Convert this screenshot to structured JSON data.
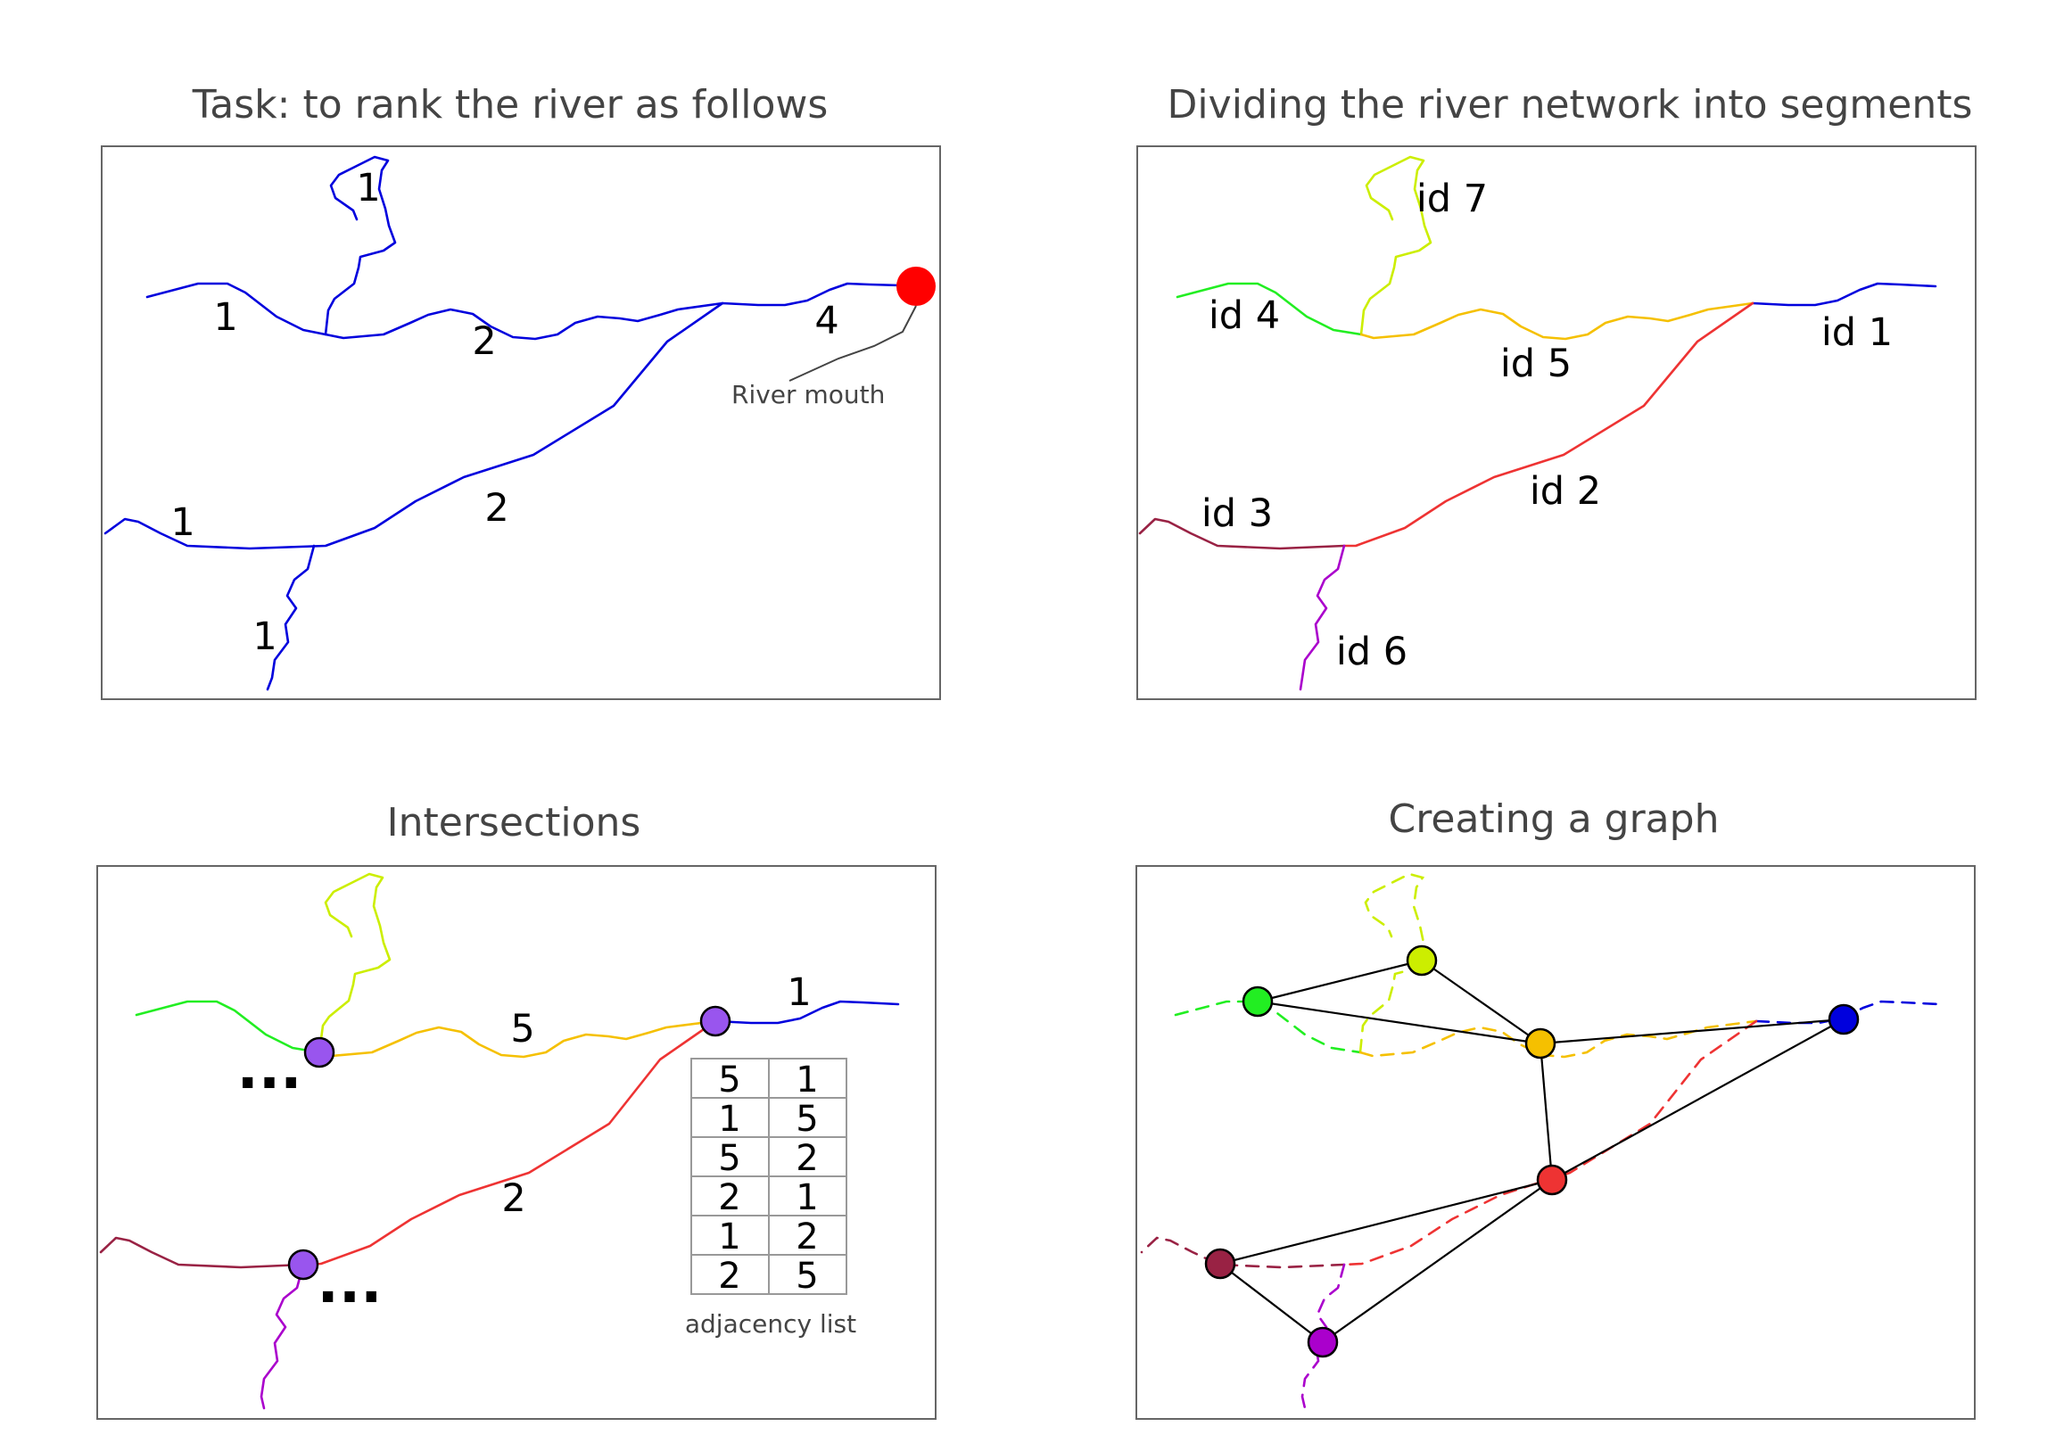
{
  "colors": {
    "blue": "#0000dd",
    "red": "#ee3333",
    "orange": "#f5c000",
    "yellow": "#ccee00",
    "green": "#22ee22",
    "maroon": "#992244",
    "purple": "#aa00cc",
    "junction": "#9955ee",
    "mouth": "#ff0000"
  },
  "panel1": {
    "title": "Task: to rank the river as follows",
    "ranks": [
      "1",
      "1",
      "2",
      "4",
      "1",
      "2",
      "1"
    ],
    "mouth_label": "River mouth"
  },
  "panel2": {
    "title": "Dividing the river network into segments",
    "ids": [
      "id 7",
      "id 4",
      "id 5",
      "id 1",
      "id 2",
      "id 3",
      "id 6"
    ]
  },
  "panel3": {
    "title": "Intersections",
    "segment_labels": [
      "1",
      "5",
      "2"
    ],
    "ellipsis": "...",
    "adjacency_list": [
      [
        "5",
        "1"
      ],
      [
        "1",
        "5"
      ],
      [
        "5",
        "2"
      ],
      [
        "2",
        "1"
      ],
      [
        "1",
        "2"
      ],
      [
        "2",
        "5"
      ]
    ],
    "table_caption": "adjacency list"
  },
  "panel4": {
    "title": "Creating a graph"
  }
}
